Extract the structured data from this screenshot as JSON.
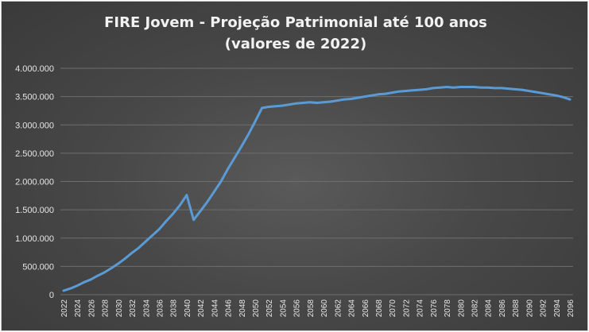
{
  "chart_data": {
    "type": "line",
    "title": [
      "FIRE Jovem - Projeção Patrimonial até 100 anos",
      "(valores de 2022)"
    ],
    "xlabel": "",
    "ylabel": "",
    "ylim": [
      0,
      4000000
    ],
    "y_ticks": [
      0,
      500000,
      1000000,
      1500000,
      2000000,
      2500000,
      3000000,
      3500000,
      4000000
    ],
    "y_tick_labels": [
      "0",
      "500.000",
      "1.000.000",
      "1.500.000",
      "2.000.000",
      "2.500.000",
      "3.000.000",
      "3.500.000",
      "4.000.000"
    ],
    "x_tick_labels": [
      "2022",
      "2024",
      "2026",
      "2028",
      "2030",
      "2032",
      "2034",
      "2036",
      "2038",
      "2040",
      "2042",
      "2044",
      "2046",
      "2048",
      "2050",
      "2052",
      "2054",
      "2056",
      "2058",
      "2060",
      "2062",
      "2064",
      "2066",
      "2068",
      "2070",
      "2072",
      "2074",
      "2076",
      "2078",
      "2080",
      "2082",
      "2084",
      "2086",
      "2088",
      "2090",
      "2092",
      "2094",
      "2096"
    ],
    "grid": true,
    "line_color": "#5b9bd5",
    "series": [
      {
        "x": [
          2022,
          2023,
          2024,
          2025,
          2026,
          2027,
          2028,
          2029,
          2030,
          2031,
          2032,
          2033,
          2034,
          2035,
          2036,
          2037,
          2038,
          2039,
          2040,
          2041,
          2042,
          2043,
          2044,
          2045,
          2046,
          2047,
          2048,
          2049,
          2050,
          2051,
          2052,
          2053,
          2054,
          2055,
          2056,
          2057,
          2058,
          2059,
          2060,
          2061,
          2062,
          2063,
          2064,
          2065,
          2066,
          2067,
          2068,
          2069,
          2070,
          2071,
          2072,
          2073,
          2074,
          2075,
          2076,
          2077,
          2078,
          2079,
          2080,
          2081,
          2082,
          2083,
          2084,
          2085,
          2086,
          2087,
          2088,
          2089,
          2090,
          2091,
          2092,
          2093,
          2094,
          2095,
          2096
        ],
        "values": [
          70000,
          110000,
          160000,
          220000,
          270000,
          335000,
          395000,
          470000,
          550000,
          640000,
          740000,
          830000,
          940000,
          1050000,
          1160000,
          1300000,
          1430000,
          1580000,
          1760000,
          1320000,
          1480000,
          1640000,
          1820000,
          2000000,
          2220000,
          2420000,
          2620000,
          2830000,
          3060000,
          3300000,
          3320000,
          3330000,
          3340000,
          3360000,
          3380000,
          3390000,
          3400000,
          3390000,
          3400000,
          3410000,
          3430000,
          3450000,
          3460000,
          3480000,
          3500000,
          3520000,
          3540000,
          3550000,
          3570000,
          3590000,
          3600000,
          3610000,
          3620000,
          3630000,
          3650000,
          3660000,
          3670000,
          3660000,
          3670000,
          3670000,
          3670000,
          3660000,
          3660000,
          3650000,
          3650000,
          3640000,
          3630000,
          3620000,
          3600000,
          3580000,
          3560000,
          3540000,
          3520000,
          3490000,
          3450000
        ]
      }
    ]
  }
}
